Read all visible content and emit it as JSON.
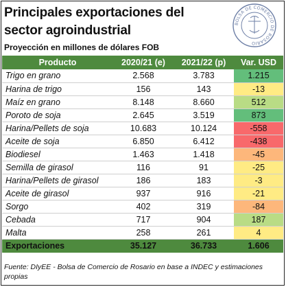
{
  "title": "Principales exportaciones del sector agroindustrial",
  "subtitle": "Proyección en millones de dólares FOB",
  "seal_text": "BOLSA DE COMERCIO DE ROSARIO",
  "source": "Fuente: DIyEE - Bolsa de Comercio de Rosario en base a INDEC y estimaciones propias",
  "colors": {
    "header_green": "#4e8a3e",
    "strong_green": "#63be7b",
    "light_green": "#b9dc85",
    "yellow": "#ffeb84",
    "orange": "#fdb77b",
    "red": "#f8696b"
  },
  "chart_data": {
    "type": "table",
    "columns": [
      "Producto",
      "2020/21 (e)",
      "2021/22 (p)",
      "Var. USD"
    ],
    "rows": [
      {
        "producto": "Trigo en grano",
        "y2020": "2.568",
        "y2021": "3.783",
        "var": "1.215",
        "var_value": 1215
      },
      {
        "producto": "Harina de trigo",
        "y2020": "156",
        "y2021": "143",
        "var": "-13",
        "var_value": -13
      },
      {
        "producto": "Maíz en grano",
        "y2020": "8.148",
        "y2021": "8.660",
        "var": "512",
        "var_value": 512
      },
      {
        "producto": "Poroto de soja",
        "y2020": "2.645",
        "y2021": "3.519",
        "var": "873",
        "var_value": 873
      },
      {
        "producto": "Harina/Pellets de soja",
        "y2020": "10.683",
        "y2021": "10.124",
        "var": "-558",
        "var_value": -558
      },
      {
        "producto": "Aceite de soja",
        "y2020": "6.850",
        "y2021": "6.412",
        "var": "-438",
        "var_value": -438
      },
      {
        "producto": "Biodiesel",
        "y2020": "1.463",
        "y2021": "1.418",
        "var": "-45",
        "var_value": -45
      },
      {
        "producto": "Semilla de girasol",
        "y2020": "116",
        "y2021": "91",
        "var": "-25",
        "var_value": -25
      },
      {
        "producto": "Harina/Pellets de girasol",
        "y2020": "186",
        "y2021": "183",
        "var": "-3",
        "var_value": -3
      },
      {
        "producto": "Aceite de girasol",
        "y2020": "937",
        "y2021": "916",
        "var": "-21",
        "var_value": -21
      },
      {
        "producto": "Sorgo",
        "y2020": "402",
        "y2021": "319",
        "var": "-84",
        "var_value": -84
      },
      {
        "producto": "Cebada",
        "y2020": "717",
        "y2021": "904",
        "var": "187",
        "var_value": 187
      },
      {
        "producto": "Malta",
        "y2020": "258",
        "y2021": "261",
        "var": "4",
        "var_value": 4
      }
    ],
    "total": {
      "producto": "Exportaciones",
      "y2020": "35.127",
      "y2021": "36.733",
      "var": "1.606"
    }
  }
}
